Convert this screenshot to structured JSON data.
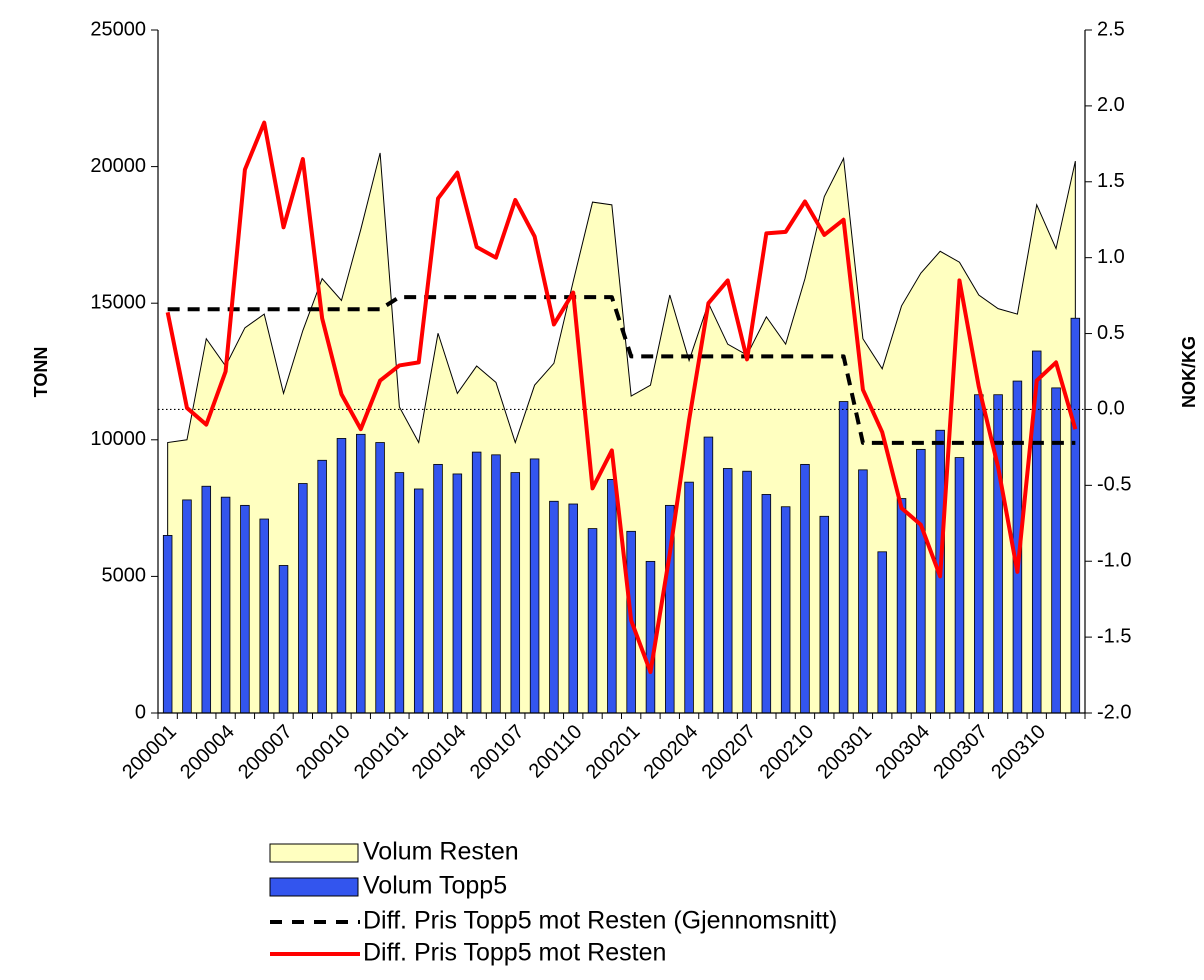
{
  "chart_data": {
    "type": "combo",
    "categories": [
      "200001",
      null,
      null,
      "200004",
      null,
      null,
      "200007",
      null,
      null,
      "200010",
      null,
      null,
      "200101",
      null,
      null,
      "200104",
      null,
      null,
      "200107",
      null,
      null,
      "200110",
      null,
      null,
      "200201",
      null,
      null,
      "200204",
      null,
      null,
      "200207",
      null,
      null,
      "200210",
      null,
      null,
      "200301",
      null,
      null,
      "200304",
      null,
      null,
      "200307",
      null,
      null,
      "200310",
      null,
      null
    ],
    "ylabel": "TONN",
    "y2label": "NOK/KG",
    "ylim": [
      0,
      25000
    ],
    "yticks": [
      0,
      5000,
      10000,
      15000,
      20000,
      25000
    ],
    "y2lim": [
      -2,
      2.5
    ],
    "y2ticks": [
      {
        "value": -2,
        "label": "-2.0"
      },
      -1.5,
      {
        "value": -1,
        "label": "-1.0"
      },
      -0.5,
      {
        "value": 0,
        "label": "0.0"
      },
      0.5,
      {
        "value": 1,
        "label": "1.0"
      },
      1.5,
      {
        "value": 2,
        "label": "2.0"
      },
      2.5
    ],
    "zero_line": true,
    "series": [
      {
        "name": "Volum Resten",
        "type": "area",
        "color": "#ffffc0",
        "values": [
          9900,
          10000,
          13700,
          12700,
          14100,
          14600,
          11700,
          14000,
          15900,
          15100,
          17700,
          20500,
          11200,
          9900,
          13900,
          11700,
          12700,
          12100,
          9900,
          12000,
          12800,
          15800,
          18700,
          18600,
          11600,
          12000,
          15300,
          12900,
          15000,
          13500,
          13100,
          14500,
          13500,
          15900,
          18900,
          20300,
          13700,
          12600,
          14900,
          16100,
          16900,
          16500,
          15300,
          14800,
          14600,
          18600,
          17000,
          20200
        ]
      },
      {
        "name": "Volum Topp5",
        "type": "bar",
        "color": "#3355ee",
        "values": [
          6500,
          7800,
          8300,
          7900,
          7600,
          7100,
          5400,
          8400,
          9250,
          10050,
          10200,
          9900,
          8800,
          8200,
          9100,
          8750,
          9550,
          9450,
          8800,
          9300,
          7750,
          7650,
          6750,
          8550,
          6650,
          5550,
          7600,
          8450,
          10100,
          8950,
          8850,
          8000,
          7550,
          9100,
          7200,
          11400,
          8900,
          5900,
          7850,
          9650,
          10350,
          9350,
          11650,
          11650,
          12150,
          13250,
          11900,
          14450
        ]
      },
      {
        "name": "Diff. Pris Topp5 mot Resten (Gjennomsnitt)",
        "type": "line",
        "dashed": true,
        "axis": "y2",
        "color": "#000000",
        "values": [
          0.66,
          0.66,
          0.66,
          0.66,
          0.66,
          0.66,
          0.66,
          0.66,
          0.66,
          0.66,
          0.66,
          0.66,
          0.74,
          0.74,
          0.74,
          0.74,
          0.74,
          0.74,
          0.74,
          0.74,
          0.74,
          0.74,
          0.74,
          0.74,
          0.35,
          0.35,
          0.35,
          0.35,
          0.35,
          0.35,
          0.35,
          0.35,
          0.35,
          0.35,
          0.35,
          0.35,
          -0.22,
          -0.22,
          -0.22,
          -0.22,
          -0.22,
          -0.22,
          -0.22,
          -0.22,
          -0.22,
          -0.22,
          -0.22,
          -0.22
        ]
      },
      {
        "name": "Diff. Pris Topp5 mot Resten",
        "type": "line",
        "dashed": false,
        "axis": "y2",
        "color": "#ff0000",
        "values": [
          0.64,
          0.01,
          -0.1,
          0.25,
          1.58,
          1.89,
          1.2,
          1.65,
          0.6,
          0.1,
          -0.13,
          0.19,
          0.29,
          0.31,
          1.39,
          1.56,
          1.07,
          1.0,
          1.38,
          1.14,
          0.56,
          0.77,
          -0.52,
          -0.27,
          -1.39,
          -1.73,
          -0.95,
          -0.07,
          0.7,
          0.85,
          0.33,
          1.16,
          1.17,
          1.37,
          1.15,
          1.25,
          0.13,
          -0.15,
          -0.65,
          -0.76,
          -1.1,
          0.85,
          0.15,
          -0.38,
          -1.07,
          0.19,
          0.31,
          -0.13
        ]
      }
    ]
  }
}
